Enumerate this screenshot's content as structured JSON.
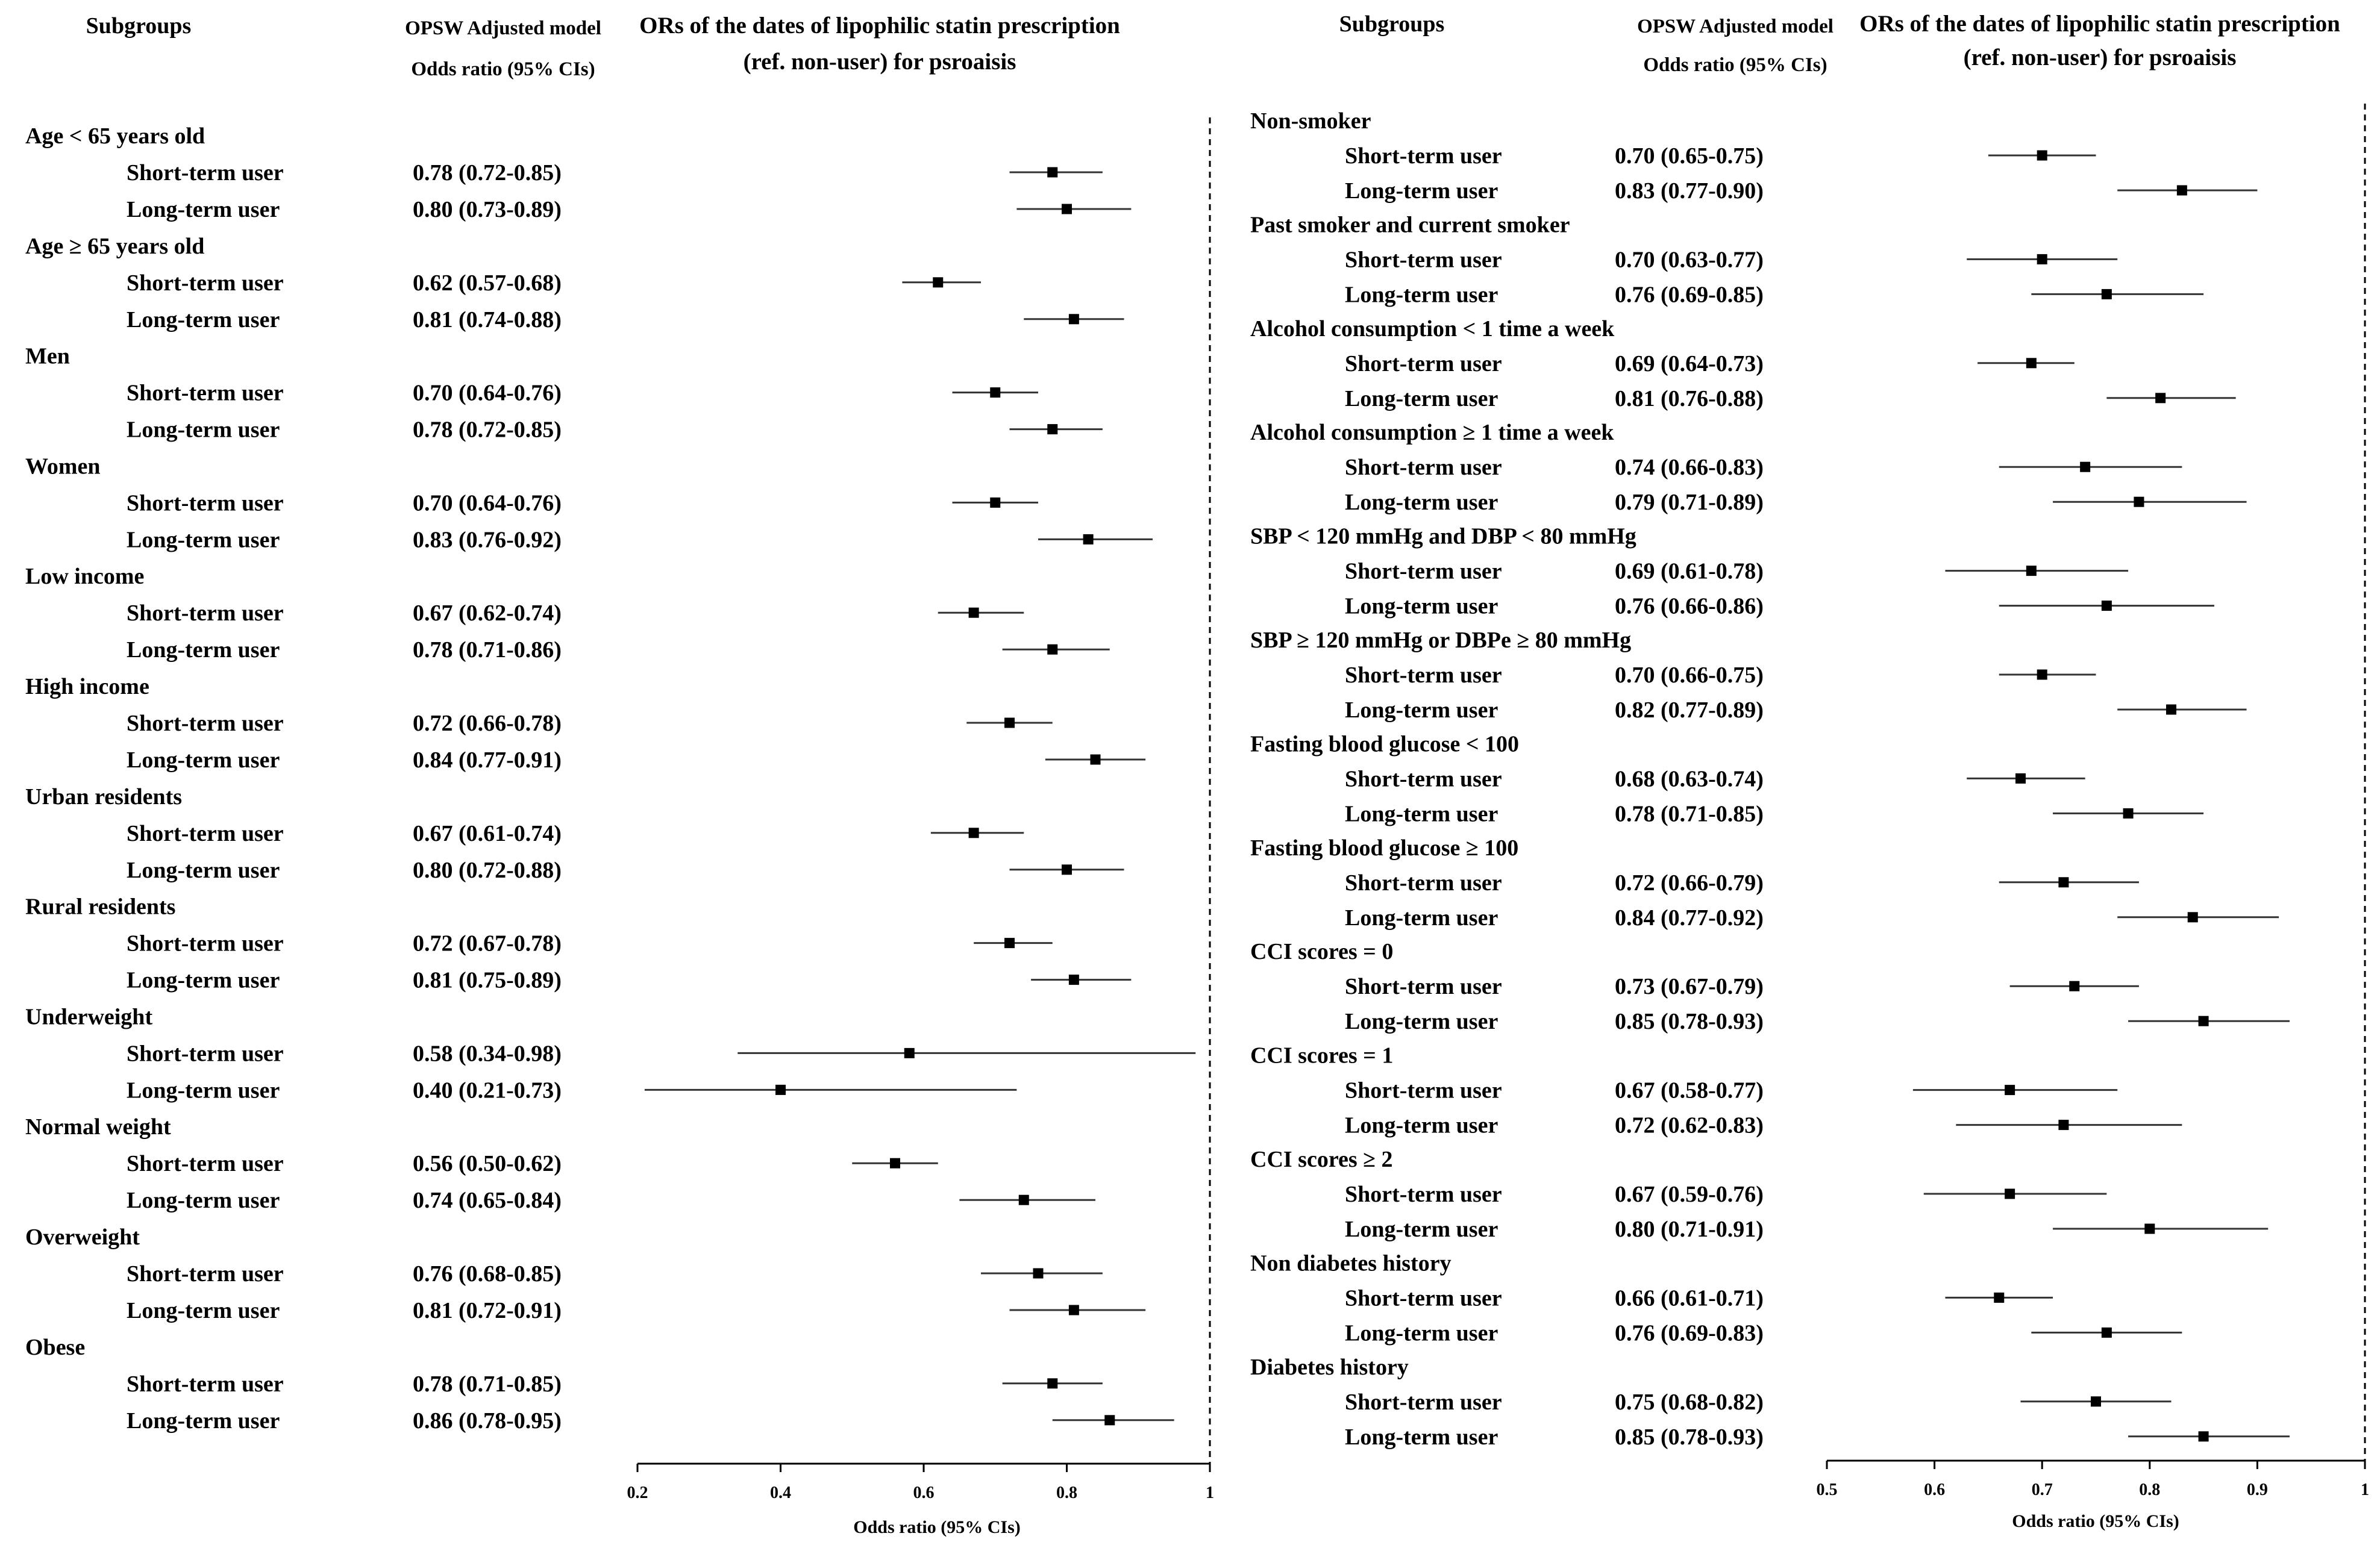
{
  "chart_data": [
    {
      "type": "forest",
      "headers": {
        "subgroups": "Subgroups",
        "model_line1": "OPSW Adjusted model",
        "model_line2": "Odds ratio (95% CIs)",
        "title_line1": "ORs of the dates of lipophilic statin prescription",
        "title_line2": "(ref. non-user) for psroaisis"
      },
      "xlabel": "Odds ratio (95% CIs)",
      "xlim": [
        0.2,
        1
      ],
      "ticks": [
        "0.2",
        "0.4",
        "0.6",
        "0.8",
        "1"
      ],
      "reference_line": 1,
      "groups": [
        {
          "name": "Age < 65 years old",
          "rows": [
            {
              "label": "Short-term user",
              "text": "0.78 (0.72-0.85)",
              "or": 0.78,
              "lo": 0.72,
              "hi": 0.85
            },
            {
              "label": "Long-term user",
              "text": "0.80 (0.73-0.89)",
              "or": 0.8,
              "lo": 0.73,
              "hi": 0.89
            }
          ]
        },
        {
          "name": "Age ≥ 65 years old",
          "rows": [
            {
              "label": "Short-term user",
              "text": "0.62 (0.57-0.68)",
              "or": 0.62,
              "lo": 0.57,
              "hi": 0.68
            },
            {
              "label": "Long-term user",
              "text": "0.81 (0.74-0.88)",
              "or": 0.81,
              "lo": 0.74,
              "hi": 0.88
            }
          ]
        },
        {
          "name": "Men",
          "rows": [
            {
              "label": "Short-term user",
              "text": "0.70 (0.64-0.76)",
              "or": 0.7,
              "lo": 0.64,
              "hi": 0.76
            },
            {
              "label": "Long-term user",
              "text": "0.78 (0.72-0.85)",
              "or": 0.78,
              "lo": 0.72,
              "hi": 0.85
            }
          ]
        },
        {
          "name": "Women",
          "rows": [
            {
              "label": "Short-term user",
              "text": "0.70 (0.64-0.76)",
              "or": 0.7,
              "lo": 0.64,
              "hi": 0.76
            },
            {
              "label": "Long-term user",
              "text": "0.83 (0.76-0.92)",
              "or": 0.83,
              "lo": 0.76,
              "hi": 0.92
            }
          ]
        },
        {
          "name": "Low income",
          "rows": [
            {
              "label": "Short-term user",
              "text": "0.67 (0.62-0.74)",
              "or": 0.67,
              "lo": 0.62,
              "hi": 0.74
            },
            {
              "label": "Long-term user",
              "text": "0.78 (0.71-0.86)",
              "or": 0.78,
              "lo": 0.71,
              "hi": 0.86
            }
          ]
        },
        {
          "name": "High income",
          "rows": [
            {
              "label": "Short-term user",
              "text": "0.72 (0.66-0.78)",
              "or": 0.72,
              "lo": 0.66,
              "hi": 0.78
            },
            {
              "label": "Long-term user",
              "text": "0.84 (0.77-0.91)",
              "or": 0.84,
              "lo": 0.77,
              "hi": 0.91
            }
          ]
        },
        {
          "name": "Urban residents",
          "rows": [
            {
              "label": "Short-term user",
              "text": "0.67 (0.61-0.74)",
              "or": 0.67,
              "lo": 0.61,
              "hi": 0.74
            },
            {
              "label": "Long-term user",
              "text": "0.80 (0.72-0.88)",
              "or": 0.8,
              "lo": 0.72,
              "hi": 0.88
            }
          ]
        },
        {
          "name": "Rural residents",
          "rows": [
            {
              "label": "Short-term user",
              "text": "0.72 (0.67-0.78)",
              "or": 0.72,
              "lo": 0.67,
              "hi": 0.78
            },
            {
              "label": "Long-term user",
              "text": "0.81 (0.75-0.89)",
              "or": 0.81,
              "lo": 0.75,
              "hi": 0.89
            }
          ]
        },
        {
          "name": "Underweight",
          "rows": [
            {
              "label": "Short-term user",
              "text": "0.58 (0.34-0.98)",
              "or": 0.58,
              "lo": 0.34,
              "hi": 0.98
            },
            {
              "label": "Long-term user",
              "text": "0.40 (0.21-0.73)",
              "or": 0.4,
              "lo": 0.21,
              "hi": 0.73
            }
          ]
        },
        {
          "name": "Normal weight",
          "rows": [
            {
              "label": "Short-term user",
              "text": "0.56 (0.50-0.62)",
              "or": 0.56,
              "lo": 0.5,
              "hi": 0.62
            },
            {
              "label": "Long-term user",
              "text": "0.74 (0.65-0.84)",
              "or": 0.74,
              "lo": 0.65,
              "hi": 0.84
            }
          ]
        },
        {
          "name": "Overweight",
          "rows": [
            {
              "label": "Short-term user",
              "text": "0.76 (0.68-0.85)",
              "or": 0.76,
              "lo": 0.68,
              "hi": 0.85
            },
            {
              "label": "Long-term user",
              "text": "0.81 (0.72-0.91)",
              "or": 0.81,
              "lo": 0.72,
              "hi": 0.91
            }
          ]
        },
        {
          "name": "Obese",
          "rows": [
            {
              "label": "Short-term user",
              "text": "0.78 (0.71-0.85)",
              "or": 0.78,
              "lo": 0.71,
              "hi": 0.85
            },
            {
              "label": "Long-term user",
              "text": "0.86 (0.78-0.95)",
              "or": 0.86,
              "lo": 0.78,
              "hi": 0.95
            }
          ]
        }
      ]
    },
    {
      "type": "forest",
      "headers": {
        "subgroups": "Subgroups",
        "model_line1": "OPSW Adjusted model",
        "model_line2": "Odds ratio (95% CIs)",
        "title_line1": "ORs of the dates of lipophilic statin prescription",
        "title_line2": "(ref. non-user) for psroaisis"
      },
      "xlabel": "Odds ratio (95% CIs)",
      "xlim": [
        0.5,
        1
      ],
      "ticks": [
        "0.5",
        "0.6",
        "0.7",
        "0.8",
        "0.9",
        "1"
      ],
      "reference_line": 1,
      "groups": [
        {
          "name": "Non-smoker",
          "rows": [
            {
              "label": "Short-term user",
              "text": "0.70 (0.65-0.75)",
              "or": 0.7,
              "lo": 0.65,
              "hi": 0.75
            },
            {
              "label": "Long-term user",
              "text": "0.83 (0.77-0.90)",
              "or": 0.83,
              "lo": 0.77,
              "hi": 0.9
            }
          ]
        },
        {
          "name": "Past smoker and current smoker",
          "rows": [
            {
              "label": "Short-term user",
              "text": "0.70 (0.63-0.77)",
              "or": 0.7,
              "lo": 0.63,
              "hi": 0.77
            },
            {
              "label": "Long-term user",
              "text": "0.76 (0.69-0.85)",
              "or": 0.76,
              "lo": 0.69,
              "hi": 0.85
            }
          ]
        },
        {
          "name": "Alcohol consumption < 1 time a week",
          "rows": [
            {
              "label": "Short-term user",
              "text": "0.69 (0.64-0.73)",
              "or": 0.69,
              "lo": 0.64,
              "hi": 0.73
            },
            {
              "label": "Long-term user",
              "text": "0.81 (0.76-0.88)",
              "or": 0.81,
              "lo": 0.76,
              "hi": 0.88
            }
          ]
        },
        {
          "name": "Alcohol consumption ≥ 1 time a week",
          "rows": [
            {
              "label": "Short-term user",
              "text": "0.74 (0.66-0.83)",
              "or": 0.74,
              "lo": 0.66,
              "hi": 0.83
            },
            {
              "label": "Long-term user",
              "text": "0.79 (0.71-0.89)",
              "or": 0.79,
              "lo": 0.71,
              "hi": 0.89
            }
          ]
        },
        {
          "name": "SBP < 120 mmHg and DBP < 80 mmHg",
          "rows": [
            {
              "label": "Short-term user",
              "text": "0.69 (0.61-0.78)",
              "or": 0.69,
              "lo": 0.61,
              "hi": 0.78
            },
            {
              "label": "Long-term user",
              "text": "0.76 (0.66-0.86)",
              "or": 0.76,
              "lo": 0.66,
              "hi": 0.86
            }
          ]
        },
        {
          "name": "SBP ≥ 120 mmHg or DBPe ≥ 80 mmHg",
          "rows": [
            {
              "label": "Short-term user",
              "text": "0.70 (0.66-0.75)",
              "or": 0.7,
              "lo": 0.66,
              "hi": 0.75
            },
            {
              "label": "Long-term user",
              "text": "0.82 (0.77-0.89)",
              "or": 0.82,
              "lo": 0.77,
              "hi": 0.89
            }
          ]
        },
        {
          "name": "Fasting blood glucose < 100",
          "rows": [
            {
              "label": "Short-term user",
              "text": "0.68 (0.63-0.74)",
              "or": 0.68,
              "lo": 0.63,
              "hi": 0.74
            },
            {
              "label": "Long-term user",
              "text": "0.78 (0.71-0.85)",
              "or": 0.78,
              "lo": 0.71,
              "hi": 0.85
            }
          ]
        },
        {
          "name": "Fasting blood glucose ≥ 100",
          "rows": [
            {
              "label": "Short-term user",
              "text": "0.72 (0.66-0.79)",
              "or": 0.72,
              "lo": 0.66,
              "hi": 0.79
            },
            {
              "label": "Long-term user",
              "text": "0.84 (0.77-0.92)",
              "or": 0.84,
              "lo": 0.77,
              "hi": 0.92
            }
          ]
        },
        {
          "name": "CCI scores = 0",
          "rows": [
            {
              "label": "Short-term user",
              "text": "0.73 (0.67-0.79)",
              "or": 0.73,
              "lo": 0.67,
              "hi": 0.79
            },
            {
              "label": "Long-term user",
              "text": "0.85 (0.78-0.93)",
              "or": 0.85,
              "lo": 0.78,
              "hi": 0.93
            }
          ]
        },
        {
          "name": "CCI scores = 1",
          "rows": [
            {
              "label": "Short-term user",
              "text": "0.67 (0.58-0.77)",
              "or": 0.67,
              "lo": 0.58,
              "hi": 0.77
            },
            {
              "label": "Long-term user",
              "text": "0.72 (0.62-0.83)",
              "or": 0.72,
              "lo": 0.62,
              "hi": 0.83
            }
          ]
        },
        {
          "name": "CCI scores ≥ 2",
          "rows": [
            {
              "label": "Short-term user",
              "text": "0.67 (0.59-0.76)",
              "or": 0.67,
              "lo": 0.59,
              "hi": 0.76
            },
            {
              "label": "Long-term user",
              "text": "0.80 (0.71-0.91)",
              "or": 0.8,
              "lo": 0.71,
              "hi": 0.91
            }
          ]
        },
        {
          "name": "Non diabetes history",
          "rows": [
            {
              "label": "Short-term user",
              "text": "0.66 (0.61-0.71)",
              "or": 0.66,
              "lo": 0.61,
              "hi": 0.71
            },
            {
              "label": "Long-term user",
              "text": "0.76 (0.69-0.83)",
              "or": 0.76,
              "lo": 0.69,
              "hi": 0.83
            }
          ]
        },
        {
          "name": "Diabetes history",
          "rows": [
            {
              "label": "Short-term user",
              "text": "0.75 (0.68-0.82)",
              "or": 0.75,
              "lo": 0.68,
              "hi": 0.82
            },
            {
              "label": "Long-term user",
              "text": "0.85 (0.78-0.93)",
              "or": 0.85,
              "lo": 0.78,
              "hi": 0.93
            }
          ]
        }
      ]
    }
  ]
}
